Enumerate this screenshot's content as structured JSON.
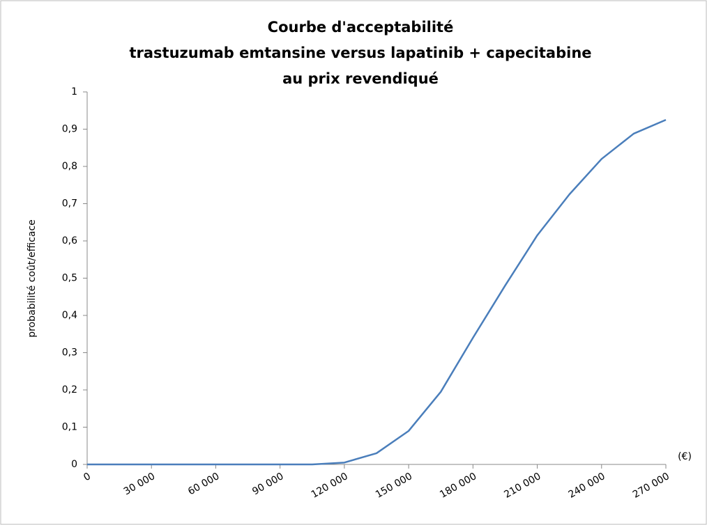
{
  "chart_data": {
    "type": "line",
    "title": [
      "Courbe d'acceptabilité",
      "trastuzumab emtansine versus lapatinib + capecitabine",
      "au prix revendiqué"
    ],
    "y_label": "probabilité coût/efficace",
    "x_label": "(€)",
    "x": [
      0,
      15000,
      30000,
      45000,
      60000,
      75000,
      90000,
      105000,
      120000,
      135000,
      150000,
      165000,
      180000,
      195000,
      210000,
      225000,
      240000,
      255000,
      270000
    ],
    "series": [
      {
        "name": "probabilité coût/efficace",
        "color": "#4a7ebb",
        "values": [
          0,
          0,
          0,
          0,
          0,
          0,
          0,
          0,
          0.005,
          0.03,
          0.09,
          0.195,
          0.34,
          0.48,
          0.615,
          0.725,
          0.82,
          0.888,
          0.925
        ]
      }
    ],
    "xlim": [
      0,
      270000
    ],
    "xticks": [
      0,
      {
        "value": 30000,
        "label": "30 000"
      },
      {
        "value": 60000,
        "label": "60 000"
      },
      {
        "value": 90000,
        "label": "90 000"
      },
      {
        "value": 120000,
        "label": "120 000"
      },
      {
        "value": 150000,
        "label": "150 000"
      },
      {
        "value": 180000,
        "label": "180 000"
      },
      {
        "value": 210000,
        "label": "210 000"
      },
      {
        "value": 240000,
        "label": "240 000"
      },
      {
        "value": 270000,
        "label": "270 000"
      }
    ],
    "ylim": [
      0,
      1
    ],
    "yticks": [
      0,
      {
        "value": 0.1,
        "label": "0,1"
      },
      {
        "value": 0.2,
        "label": "0,2"
      },
      {
        "value": 0.3,
        "label": "0,3"
      },
      {
        "value": 0.4,
        "label": "0,4"
      },
      {
        "value": 0.5,
        "label": "0,5"
      },
      {
        "value": 0.6,
        "label": "0,6"
      },
      {
        "value": 0.7,
        "label": "0,7"
      },
      {
        "value": 0.8,
        "label": "0,8"
      },
      {
        "value": 0.9,
        "label": "0,9"
      },
      1
    ],
    "grid": false
  }
}
